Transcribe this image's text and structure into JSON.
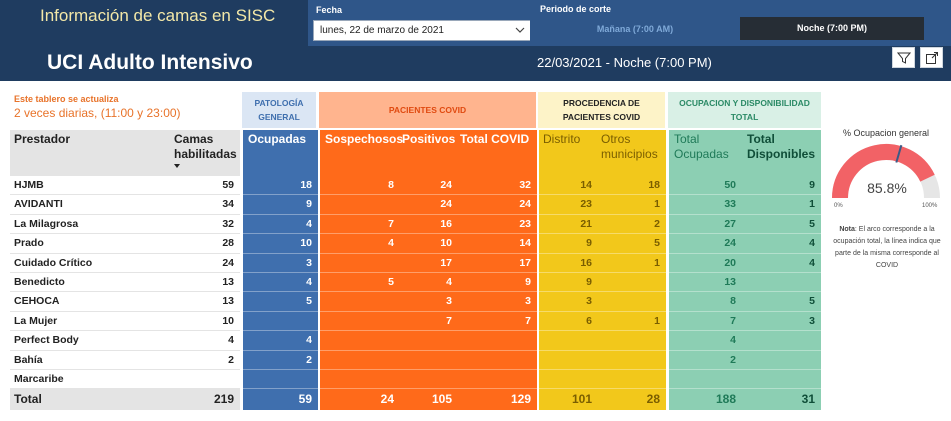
{
  "header": {
    "app_title": "Información de camas en SISC",
    "unit_title": "UCI Adulto Intensivo",
    "fecha_label": "Fecha",
    "fecha_value": "lunes, 22 de marzo de 2021",
    "periodo_label": "Periodo de corte",
    "periodo_options": [
      "Mañana (7:00 AM)",
      "Noche (7:00 PM)"
    ],
    "periodo_selected": "Noche (7:00 PM)",
    "date_display": "22/03/2021 - Noche (7:00 PM)",
    "icons": [
      "filter-icon",
      "expand-icon"
    ]
  },
  "notice": {
    "line1": "Este tablero se actualiza",
    "line2": "2 veces diarias, (11:00 y 23:00)"
  },
  "groups": {
    "patologia": "PATOLOGÍA GENERAL",
    "covid": "PACIENTES COVID",
    "procedencia": "PROCEDENCIA DE PACIENTES COVID",
    "ocupacion": "OCUPACION Y DISPONIBILIDAD TOTAL"
  },
  "columns": {
    "prestador": "Prestador",
    "camas": "Camas habilitadas",
    "ocupadas": "Ocupadas",
    "sospechosos": "Sospechosos",
    "positivos": "Positivos",
    "total_covid": "Total COVID",
    "distrito": "Distrito",
    "otros": "Otros municipios",
    "total_ocupadas": "Total Ocupadas",
    "total_disponibles": "Total Disponibles"
  },
  "rows": [
    {
      "prestador": "HJMB",
      "camas": "59",
      "ocupadas": "18",
      "sospechosos": "8",
      "positivos": "24",
      "total_covid": "32",
      "distrito": "14",
      "otros": "18",
      "total_ocupadas": "50",
      "total_disponibles": "9"
    },
    {
      "prestador": "AVIDANTI",
      "camas": "34",
      "ocupadas": "9",
      "sospechosos": "",
      "positivos": "24",
      "total_covid": "24",
      "distrito": "23",
      "otros": "1",
      "total_ocupadas": "33",
      "total_disponibles": "1"
    },
    {
      "prestador": "La Milagrosa",
      "camas": "32",
      "ocupadas": "4",
      "sospechosos": "7",
      "positivos": "16",
      "total_covid": "23",
      "distrito": "21",
      "otros": "2",
      "total_ocupadas": "27",
      "total_disponibles": "5"
    },
    {
      "prestador": "Prado",
      "camas": "28",
      "ocupadas": "10",
      "sospechosos": "4",
      "positivos": "10",
      "total_covid": "14",
      "distrito": "9",
      "otros": "5",
      "total_ocupadas": "24",
      "total_disponibles": "4"
    },
    {
      "prestador": "Cuidado Crítico",
      "camas": "24",
      "ocupadas": "3",
      "sospechosos": "",
      "positivos": "17",
      "total_covid": "17",
      "distrito": "16",
      "otros": "1",
      "total_ocupadas": "20",
      "total_disponibles": "4"
    },
    {
      "prestador": "Benedicto",
      "camas": "13",
      "ocupadas": "4",
      "sospechosos": "5",
      "positivos": "4",
      "total_covid": "9",
      "distrito": "9",
      "otros": "",
      "total_ocupadas": "13",
      "total_disponibles": ""
    },
    {
      "prestador": "CEHOCA",
      "camas": "13",
      "ocupadas": "5",
      "sospechosos": "",
      "positivos": "3",
      "total_covid": "3",
      "distrito": "3",
      "otros": "",
      "total_ocupadas": "8",
      "total_disponibles": "5"
    },
    {
      "prestador": "La Mujer",
      "camas": "10",
      "ocupadas": "",
      "sospechosos": "",
      "positivos": "7",
      "total_covid": "7",
      "distrito": "6",
      "otros": "1",
      "total_ocupadas": "7",
      "total_disponibles": "3"
    },
    {
      "prestador": "Perfect Body",
      "camas": "4",
      "ocupadas": "4",
      "sospechosos": "",
      "positivos": "",
      "total_covid": "",
      "distrito": "",
      "otros": "",
      "total_ocupadas": "4",
      "total_disponibles": ""
    },
    {
      "prestador": "Bahía",
      "camas": "2",
      "ocupadas": "2",
      "sospechosos": "",
      "positivos": "",
      "total_covid": "",
      "distrito": "",
      "otros": "",
      "total_ocupadas": "2",
      "total_disponibles": ""
    },
    {
      "prestador": "Marcaribe",
      "camas": "",
      "ocupadas": "",
      "sospechosos": "",
      "positivos": "",
      "total_covid": "",
      "distrito": "",
      "otros": "",
      "total_ocupadas": "",
      "total_disponibles": ""
    }
  ],
  "totals": {
    "label": "Total",
    "camas": "219",
    "ocupadas": "59",
    "sospechosos": "24",
    "positivos": "105",
    "total_covid": "129",
    "distrito": "101",
    "otros": "28",
    "total_ocupadas": "188",
    "total_disponibles": "31"
  },
  "gauge": {
    "title": "% Ocupacion general",
    "value_text": "85.8%",
    "value": 0.858,
    "covid_share": 0.59,
    "min_label": "0%",
    "max_label": "100%",
    "note_bold": "Nota",
    "note_text": ": El arco corresponde a la ocupación total, la línea indica que parte de la misma corresponde al COVID"
  },
  "colors": {
    "header_bg": "#1f3c60",
    "patologia": "#3f6fae",
    "covid": "#ff6a1a",
    "procedencia": "#f2c81b",
    "ocupacion": "#8ccfb3",
    "gauge_arc": "#f26266",
    "gauge_track": "#e6e6e6",
    "gauge_marker": "#3b5a86"
  }
}
